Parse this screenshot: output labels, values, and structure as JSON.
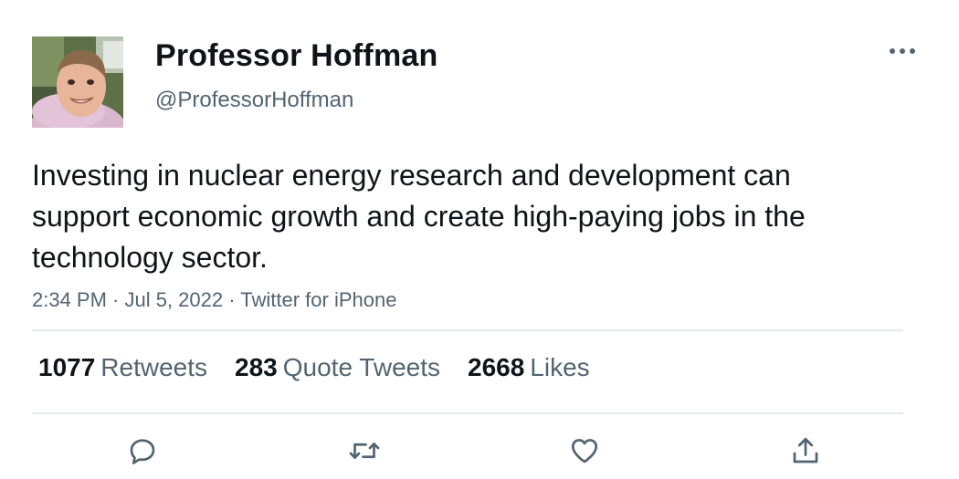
{
  "user": {
    "display_name": "Professor Hoffman",
    "handle": "@ProfessorHoffman",
    "avatar_icon": "profile-photo"
  },
  "tweet": {
    "text": "Investing in nuclear energy research and development can support economic growth and create high-paying jobs in the technology sector.",
    "meta": "2:34 PM · Jul 5, 2022 · Twitter for iPhone"
  },
  "stats": {
    "retweets": {
      "count": "1077",
      "label": "Retweets"
    },
    "quote_tweets": {
      "count": "283",
      "label": "Quote Tweets"
    },
    "likes": {
      "count": "2668",
      "label": "Likes"
    }
  },
  "actions": {
    "reply_icon": "reply-icon",
    "retweet_icon": "retweet-icon",
    "like_icon": "heart-icon",
    "share_icon": "share-icon",
    "more_icon": "more-icon"
  },
  "colors": {
    "text_primary": "#0f1419",
    "text_secondary": "#536471",
    "divider": "#e6e9eb"
  }
}
